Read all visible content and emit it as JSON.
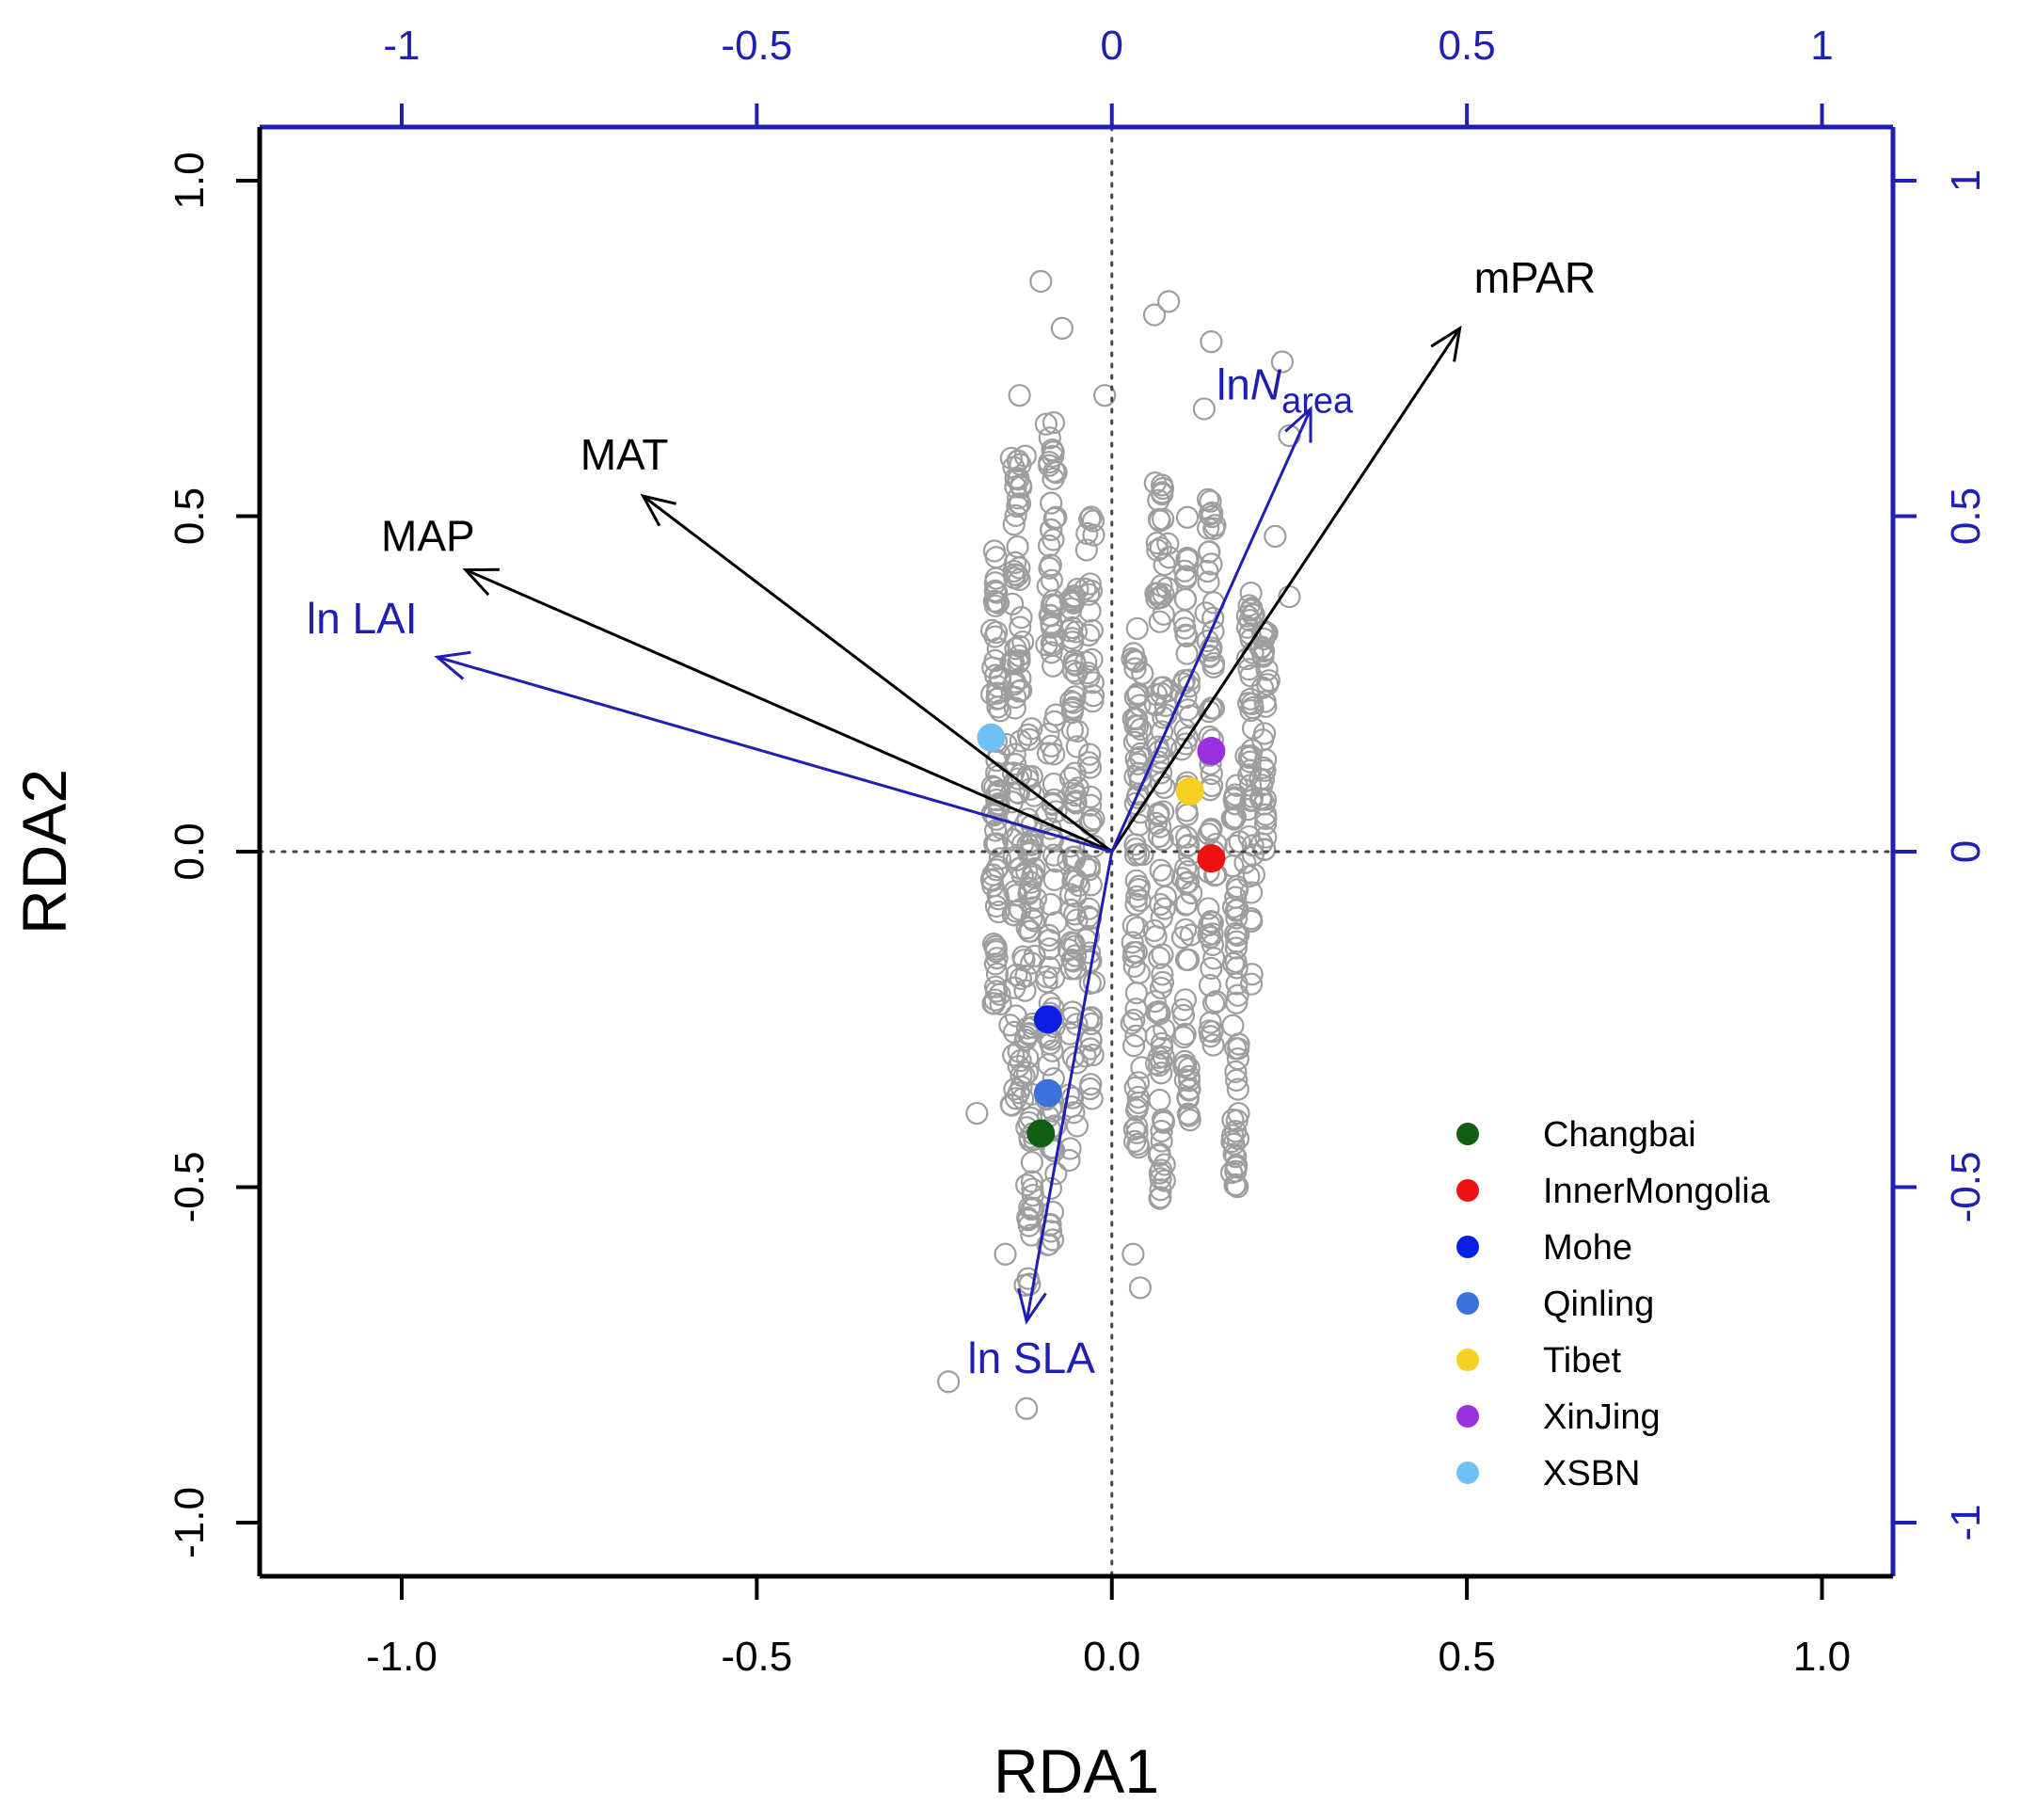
{
  "chart_data": {
    "type": "scatter",
    "title": "",
    "xlabel": "RDA1",
    "ylabel": "RDA2",
    "xlim": [
      -1.2,
      1.1
    ],
    "ylim": [
      -1.08,
      1.08
    ],
    "x_ticks": [
      "-1.0",
      "-0.5",
      "0.0",
      "0.5",
      "1.0"
    ],
    "x_tick_values": [
      -1.0,
      -0.5,
      0.0,
      0.5,
      1.0
    ],
    "y_ticks": [
      "-1.0",
      "-0.5",
      "0.0",
      "0.5",
      "1.0"
    ],
    "y_tick_values": [
      -1.0,
      -0.5,
      0.0,
      0.5,
      1.0
    ],
    "top_axis_ticks": [
      "-1",
      "-0.5",
      "0",
      "0.5",
      "1"
    ],
    "top_axis_values": [
      -1.0,
      -0.5,
      0.0,
      0.5,
      1.0
    ],
    "right_axis_ticks": [
      "-1",
      "-0.5",
      "0",
      "0.5",
      "1"
    ],
    "right_axis_values": [
      -1.0,
      -0.5,
      0.0,
      0.5,
      1.0
    ],
    "reference_lines": {
      "x": 0,
      "y": 0,
      "style": "dotted"
    },
    "grid": false,
    "legend_position": "bottom-right",
    "colors": {
      "points": "#9e9e9e",
      "env_arrows": "#000000",
      "trait_arrows": "#1f1fb4",
      "secondary_axes": "#1f1fb4"
    },
    "arrows": [
      {
        "label": "mPAR",
        "x": 0.49,
        "y": 0.78,
        "group": "environment",
        "color": "#000000"
      },
      {
        "label": "MAT",
        "x": -0.66,
        "y": 0.53,
        "group": "environment",
        "color": "#000000"
      },
      {
        "label": "MAP",
        "x": -0.91,
        "y": 0.42,
        "group": "environment",
        "color": "#000000"
      },
      {
        "label": "ln",
        "label_italic": "N",
        "label_sub": "area",
        "x": 0.28,
        "y": 0.66,
        "group": "trait",
        "color": "#1f1fb4"
      },
      {
        "label": "ln LAI",
        "x": -0.95,
        "y": 0.29,
        "group": "trait",
        "color": "#1f1fb4"
      },
      {
        "label": "ln SLA",
        "x": -0.12,
        "y": -0.7,
        "group": "trait",
        "color": "#1f1fb4"
      }
    ],
    "site_centroids": [
      {
        "name": "Changbai",
        "x": -0.1,
        "y": -0.42,
        "color": "#116011"
      },
      {
        "name": "InnerMongolia",
        "x": 0.14,
        "y": -0.01,
        "color": "#ee1111"
      },
      {
        "name": "Mohe",
        "x": -0.09,
        "y": -0.25,
        "color": "#0a1fe6"
      },
      {
        "name": "Qinling",
        "x": -0.09,
        "y": -0.36,
        "color": "#3a72da"
      },
      {
        "name": "Tibet",
        "x": 0.11,
        "y": 0.09,
        "color": "#f5d020"
      },
      {
        "name": "XinJing",
        "x": 0.14,
        "y": 0.15,
        "color": "#9b30e0"
      },
      {
        "name": "XSBN",
        "x": -0.17,
        "y": 0.17,
        "color": "#6ec0f5"
      }
    ],
    "point_cloud_outliers": [
      [
        -0.1,
        0.85
      ],
      [
        -0.07,
        0.78
      ],
      [
        0.06,
        0.8
      ],
      [
        0.08,
        0.82
      ],
      [
        0.14,
        0.76
      ],
      [
        0.24,
        0.73
      ],
      [
        -0.01,
        0.68
      ],
      [
        0.25,
        0.62
      ],
      [
        -0.13,
        0.68
      ],
      [
        0.13,
        0.66
      ],
      [
        -0.19,
        -0.39
      ],
      [
        -0.15,
        -0.6
      ],
      [
        -0.23,
        -0.79
      ],
      [
        -0.12,
        -0.83
      ],
      [
        0.03,
        -0.6
      ],
      [
        0.04,
        -0.65
      ],
      [
        0.11,
        -0.4
      ],
      [
        -0.06,
        -0.46
      ],
      [
        0.25,
        0.38
      ],
      [
        0.23,
        0.47
      ]
    ],
    "point_cloud_columns": [
      {
        "x": -0.163,
        "sd": 0.013,
        "ymin": -0.23,
        "ymax": 0.45,
        "n": 75
      },
      {
        "x": -0.133,
        "sd": 0.018,
        "ymin": -0.38,
        "ymax": 0.62,
        "n": 90
      },
      {
        "x": -0.115,
        "sd": 0.015,
        "ymin": -0.65,
        "ymax": 0.2,
        "n": 70
      },
      {
        "x": -0.085,
        "sd": 0.015,
        "ymin": -0.6,
        "ymax": 0.64,
        "n": 95
      },
      {
        "x": -0.055,
        "sd": 0.013,
        "ymin": -0.48,
        "ymax": 0.4,
        "n": 70
      },
      {
        "x": -0.03,
        "sd": 0.012,
        "ymin": -0.4,
        "ymax": 0.52,
        "n": 55
      },
      {
        "x": 0.035,
        "sd": 0.013,
        "ymin": -0.48,
        "ymax": 0.34,
        "n": 70
      },
      {
        "x": 0.07,
        "sd": 0.014,
        "ymin": -0.52,
        "ymax": 0.55,
        "n": 95
      },
      {
        "x": 0.105,
        "sd": 0.012,
        "ymin": -0.4,
        "ymax": 0.5,
        "n": 65
      },
      {
        "x": 0.14,
        "sd": 0.013,
        "ymin": -0.3,
        "ymax": 0.54,
        "n": 60
      },
      {
        "x": 0.175,
        "sd": 0.01,
        "ymin": -0.5,
        "ymax": 0.1,
        "n": 55
      },
      {
        "x": 0.195,
        "sd": 0.01,
        "ymin": -0.2,
        "ymax": 0.4,
        "n": 45
      },
      {
        "x": 0.215,
        "sd": 0.01,
        "ymin": 0.0,
        "ymax": 0.35,
        "n": 35
      }
    ]
  }
}
